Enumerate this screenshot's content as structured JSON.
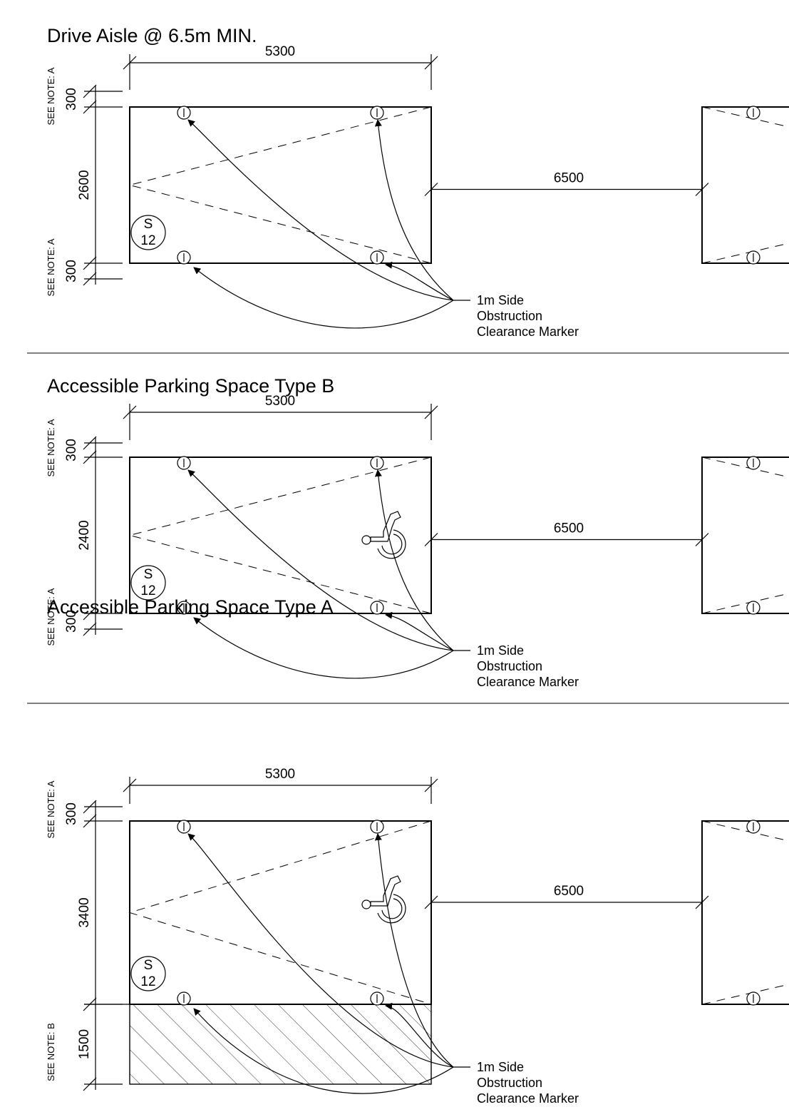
{
  "sections": [
    {
      "title": "Drive Aisle @ 6.5m MIN.",
      "width_dim": "5300",
      "aisle_dim": "6500",
      "top_buffer_dim": "300",
      "bay_depth_dim": "2600",
      "bottom_buffer_dim": "300",
      "top_note": "SEE NOTE: A",
      "bottom_note": "SEE NOTE: A",
      "marker": {
        "letter": "S",
        "number": "12"
      },
      "callout": [
        "1m Side",
        "Obstruction",
        "Clearance Marker"
      ],
      "accessible_symbol": false,
      "shared_zone": false
    },
    {
      "title": "Accessible Parking Space Type B",
      "width_dim": "5300",
      "aisle_dim": "6500",
      "top_buffer_dim": "300",
      "bay_depth_dim": "2400",
      "bottom_buffer_dim": "300",
      "top_note": "SEE NOTE: A",
      "bottom_note": "SEE NOTE: A",
      "marker": {
        "letter": "S",
        "number": "12"
      },
      "callout": [
        "1m Side",
        "Obstruction",
        "Clearance Marker"
      ],
      "accessible_symbol": true,
      "shared_zone": false
    },
    {
      "title": "Accessible Parking Space Type A",
      "width_dim": "5300",
      "aisle_dim": "6500",
      "top_buffer_dim": "300",
      "bay_depth_dim": "3400",
      "bottom_buffer_dim": "1500",
      "top_note": "SEE NOTE: A",
      "bottom_note": "SEE NOTE: B",
      "marker": {
        "letter": "S",
        "number": "12"
      },
      "callout": [
        "1m Side",
        "Obstruction",
        "Clearance Marker"
      ],
      "accessible_symbol": true,
      "shared_zone": true
    }
  ]
}
